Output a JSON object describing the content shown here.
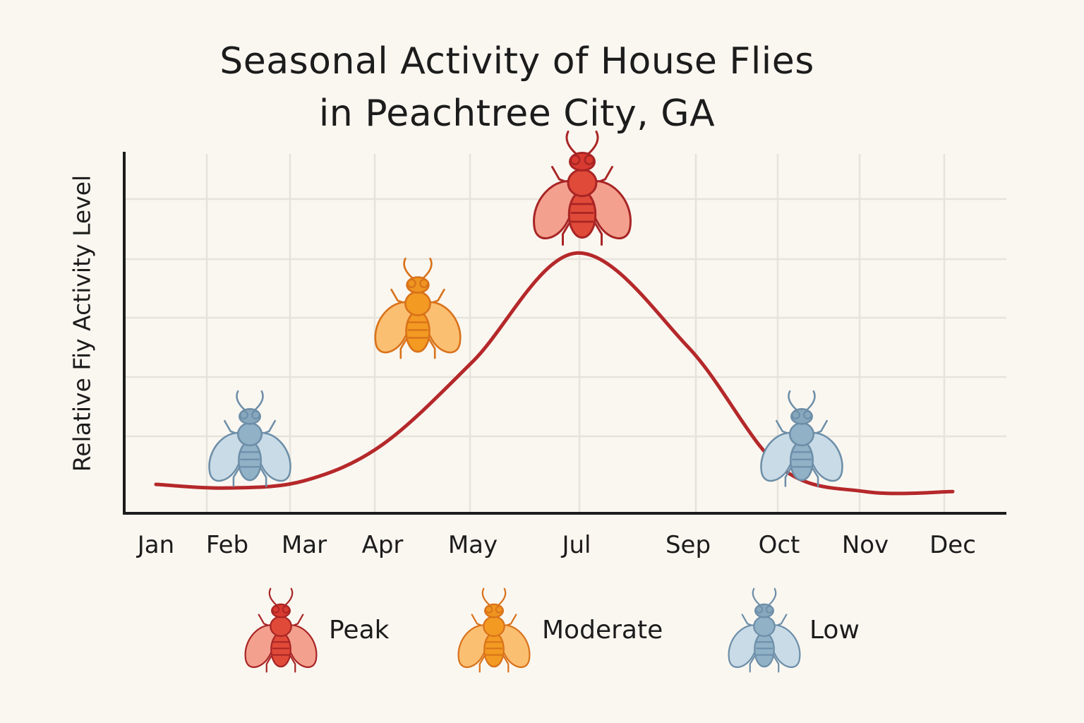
{
  "chart_data": {
    "type": "line",
    "title": "Seasonal Activity of House Flies in Peachtree City, GA",
    "title_lines": [
      "Seasonal Activity of House Flies",
      "in Peachtree City, GA"
    ],
    "xlabel": "",
    "ylabel": "Relative Fiy Activity Level",
    "categories": [
      "Jan",
      "Feb",
      "Mar",
      "Apr",
      "May",
      "Jul",
      "Sep",
      "Oct",
      "Nov",
      "Dec"
    ],
    "series": [
      {
        "color": "#b5282a",
        "points": [
          {
            "x": "Jan",
            "y": 0.08
          },
          {
            "x": "Feb",
            "y": 0.07
          },
          {
            "x": "Mar",
            "y": 0.09
          },
          {
            "x": "Apr",
            "y": 0.19
          },
          {
            "x": "May",
            "y": 0.42
          },
          {
            "x": "Jul",
            "y": 0.72
          },
          {
            "x": "Sep",
            "y": 0.46
          },
          {
            "x": "Oct",
            "y": 0.13
          },
          {
            "x": "Nov",
            "y": 0.06
          },
          {
            "x": "Dec",
            "y": 0.06
          }
        ]
      }
    ],
    "ylim": [
      0,
      1
    ],
    "grid": true,
    "markers": [
      {
        "x": "Feb",
        "level": "Low",
        "y": 0.19
      },
      {
        "x": "Apr",
        "level": "Moderate",
        "y": 0.55
      },
      {
        "x": "Jul",
        "level": "Peak",
        "y": 0.88
      },
      {
        "x": "Oct",
        "level": "Low",
        "y": 0.19
      }
    ],
    "legend": {
      "placement": "bottom",
      "entries": [
        {
          "label": "Peak",
          "color": "#c8302c"
        },
        {
          "label": "Moderate",
          "color": "#e8861a"
        },
        {
          "label": "Low",
          "color": "#6f93ad"
        }
      ]
    }
  },
  "colors": {
    "background": "#faf7f1",
    "axis": "#1c1c1c",
    "grid": "#e6e3dc",
    "line": "#b5282a"
  },
  "icons": {
    "fly": "fly-icon"
  }
}
